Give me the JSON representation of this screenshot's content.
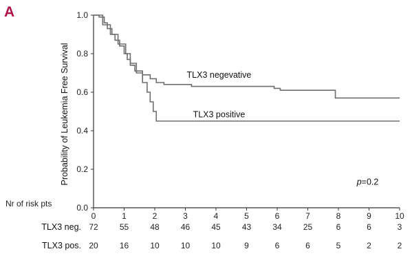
{
  "panel_label": "A",
  "colors": {
    "panel_label": "#b0124a",
    "axis": "#333333",
    "curve": "#6e6e6e"
  },
  "chart_data": {
    "type": "line",
    "title": "",
    "xlabel": "",
    "ylabel": "Probability of Leukemia Free Survival",
    "xlim": [
      0,
      10
    ],
    "ylim": [
      0,
      1.0
    ],
    "x_ticks": [
      0,
      1,
      2,
      3,
      4,
      5,
      6,
      7,
      8,
      9,
      10
    ],
    "y_ticks": [
      "0.0",
      "0.2",
      "0.4",
      "0.6",
      "0.8",
      "1.0"
    ],
    "grid": false,
    "series": [
      {
        "name": "TLX3 negevative",
        "steps": [
          [
            0,
            1.0
          ],
          [
            0.18,
            0.99
          ],
          [
            0.35,
            0.96
          ],
          [
            0.45,
            0.93
          ],
          [
            0.6,
            0.9
          ],
          [
            0.7,
            0.87
          ],
          [
            0.85,
            0.84
          ],
          [
            1.0,
            0.8
          ],
          [
            1.1,
            0.77
          ],
          [
            1.2,
            0.74
          ],
          [
            1.35,
            0.71
          ],
          [
            1.6,
            0.69
          ],
          [
            1.85,
            0.67
          ],
          [
            2.05,
            0.65
          ],
          [
            2.3,
            0.64
          ],
          [
            3.2,
            0.63
          ],
          [
            5.9,
            0.62
          ],
          [
            6.1,
            0.61
          ],
          [
            7.9,
            0.57
          ],
          [
            10.0,
            0.57
          ]
        ]
      },
      {
        "name": "TLX3 positive",
        "steps": [
          [
            0,
            1.0
          ],
          [
            0.3,
            0.95
          ],
          [
            0.55,
            0.9
          ],
          [
            0.8,
            0.85
          ],
          [
            1.05,
            0.8
          ],
          [
            1.2,
            0.75
          ],
          [
            1.4,
            0.7
          ],
          [
            1.6,
            0.65
          ],
          [
            1.75,
            0.6
          ],
          [
            1.85,
            0.55
          ],
          [
            1.95,
            0.5
          ],
          [
            2.05,
            0.45
          ],
          [
            10.0,
            0.45
          ]
        ]
      }
    ],
    "annotations": [
      {
        "text_italic": "p",
        "text": "=0.2"
      }
    ]
  },
  "risk_table": {
    "title": "Nr of risk pts",
    "rows": [
      {
        "label": "TLX3 neg.",
        "values": [
          "72",
          "55",
          "48",
          "46",
          "45",
          "43",
          "34",
          "25",
          "6",
          "6",
          "3"
        ]
      },
      {
        "label": "TLX3 pos.",
        "values": [
          "20",
          "16",
          "10",
          "10",
          "10",
          "9",
          "6",
          "6",
          "5",
          "2",
          "2"
        ]
      }
    ]
  }
}
